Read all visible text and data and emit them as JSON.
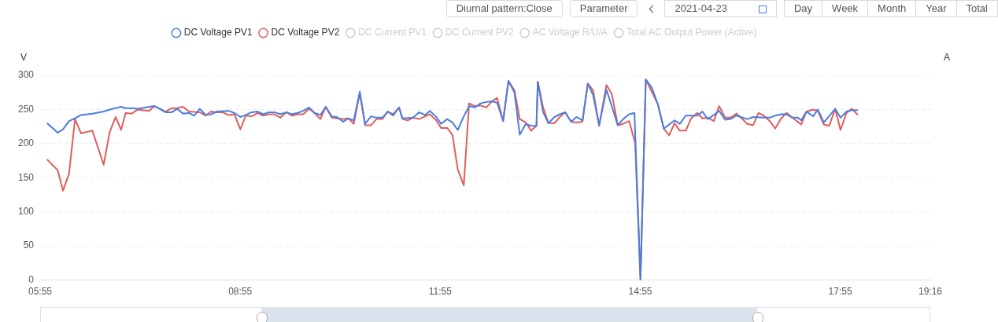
{
  "chart_data": {
    "type": "line",
    "annotations": [
      "Diurnal pattern:Close",
      "Parameter",
      "2021-04-23",
      "Day",
      "Week",
      "Month",
      "Year",
      "Total"
    ],
    "ylabel": "V",
    "y2label": "A",
    "xlim": [
      5.9167,
      19.2667
    ],
    "xticks": [
      {
        "value": 5.9167,
        "label": "05:55"
      },
      {
        "value": 8.9167,
        "label": "08:55"
      },
      {
        "value": 11.9167,
        "label": "11:55"
      },
      {
        "value": 14.9167,
        "label": "14:55"
      },
      {
        "value": 17.9167,
        "label": "17:55"
      },
      {
        "value": 19.2667,
        "label": "19:16"
      }
    ],
    "ylim": [
      0,
      300
    ],
    "yticks": [
      0,
      50,
      100,
      150,
      200,
      250,
      300
    ],
    "grid": "y",
    "legend": "top",
    "marker": "none",
    "line_style": "solid",
    "series": [
      {
        "name": "DC Voltage PV1",
        "color": "#4a7de0",
        "x": [
          6.02,
          6.18,
          6.26,
          6.35,
          6.44,
          6.53,
          6.7,
          6.87,
          6.96,
          7.13,
          7.2,
          7.29,
          7.38,
          7.63,
          7.8,
          7.89,
          7.97,
          8.06,
          8.15,
          8.23,
          8.31,
          8.4,
          8.48,
          8.57,
          8.74,
          8.83,
          8.92,
          9.0,
          9.09,
          9.18,
          9.26,
          9.35,
          9.43,
          9.52,
          9.61,
          9.69,
          9.78,
          9.86,
          9.95,
          10.03,
          10.12,
          10.2,
          10.29,
          10.37,
          10.46,
          10.54,
          10.62,
          10.71,
          10.79,
          10.88,
          10.96,
          11.05,
          11.13,
          11.21,
          11.3,
          11.35,
          11.51,
          11.6,
          11.69,
          11.76,
          11.85,
          11.93,
          12.02,
          12.1,
          12.18,
          12.27,
          12.35,
          12.44,
          12.52,
          12.61,
          12.69,
          12.77,
          12.86,
          12.94,
          13.03,
          13.11,
          13.2,
          13.28,
          13.36,
          13.38,
          13.46,
          13.54,
          13.63,
          13.71,
          13.79,
          13.88,
          13.96,
          14.05,
          14.13,
          14.21,
          14.3,
          14.41,
          14.58,
          14.66,
          14.75,
          14.83,
          14.92,
          15.0,
          15.09,
          15.18,
          15.27,
          15.43,
          15.51,
          15.6,
          15.77,
          15.85,
          15.93,
          16.02,
          16.1,
          16.19,
          16.27,
          16.36,
          16.52,
          16.61,
          16.77,
          16.86,
          16.94,
          17.03,
          17.11,
          17.2,
          17.28,
          17.33,
          17.41,
          17.51,
          17.58,
          17.67,
          17.84,
          17.92,
          18.01,
          18.09,
          18.18
        ],
        "values": [
          230,
          216,
          221,
          233,
          237,
          242,
          244,
          247,
          250,
          254,
          252,
          252,
          251,
          255,
          246,
          246,
          251,
          244,
          245,
          241,
          251,
          242,
          243,
          247,
          248,
          245,
          239,
          242,
          246,
          247,
          243,
          246,
          246,
          243,
          246,
          243,
          245,
          248,
          253,
          245,
          242,
          254,
          240,
          239,
          232,
          237,
          234,
          276,
          229,
          240,
          238,
          238,
          247,
          241,
          253,
          237,
          238,
          246,
          242,
          248,
          240,
          229,
          236,
          231,
          220,
          240,
          255,
          253,
          259,
          261,
          262,
          260,
          233,
          292,
          275,
          213,
          229,
          226,
          226,
          290,
          246,
          230,
          239,
          243,
          246,
          232,
          239,
          234,
          288,
          271,
          227,
          279,
          227,
          236,
          243,
          245,
          0,
          294,
          282,
          258,
          222,
          234,
          229,
          241,
          241,
          247,
          236,
          242,
          248,
          235,
          236,
          241,
          236,
          239,
          238,
          238,
          241,
          243,
          243,
          238,
          238,
          234,
          247,
          240,
          250,
          231,
          251,
          238,
          247,
          249,
          249
        ]
      },
      {
        "name": "DC Voltage PV2",
        "color": "#e05d5d",
        "x": [
          6.02,
          6.18,
          6.26,
          6.35,
          6.44,
          6.53,
          6.7,
          6.87,
          6.96,
          7.05,
          7.13,
          7.2,
          7.29,
          7.38,
          7.55,
          7.63,
          7.8,
          7.89,
          7.97,
          8.06,
          8.15,
          8.31,
          8.4,
          8.48,
          8.57,
          8.65,
          8.74,
          8.83,
          8.92,
          9.0,
          9.09,
          9.18,
          9.26,
          9.35,
          9.43,
          9.52,
          9.61,
          9.69,
          9.78,
          9.86,
          9.95,
          10.03,
          10.12,
          10.2,
          10.29,
          10.37,
          10.46,
          10.54,
          10.62,
          10.71,
          10.79,
          10.88,
          10.96,
          11.05,
          11.13,
          11.21,
          11.3,
          11.35,
          11.43,
          11.51,
          11.6,
          11.69,
          11.76,
          11.85,
          11.93,
          12.02,
          12.1,
          12.18,
          12.27,
          12.35,
          12.44,
          12.52,
          12.61,
          12.69,
          12.77,
          12.86,
          12.94,
          13.03,
          13.11,
          13.2,
          13.28,
          13.36,
          13.38,
          13.46,
          13.54,
          13.63,
          13.71,
          13.79,
          13.88,
          13.96,
          14.05,
          14.13,
          14.21,
          14.3,
          14.41,
          14.49,
          14.58,
          14.66,
          14.75,
          14.84,
          14.92,
          15.0,
          15.09,
          15.18,
          15.27,
          15.35,
          15.43,
          15.51,
          15.6,
          15.68,
          15.77,
          15.85,
          15.93,
          16.02,
          16.1,
          16.19,
          16.27,
          16.36,
          16.44,
          16.52,
          16.61,
          16.69,
          16.77,
          16.86,
          16.94,
          17.03,
          17.11,
          17.2,
          17.33,
          17.41,
          17.51,
          17.58,
          17.67,
          17.75,
          17.84,
          17.92,
          18.01,
          18.09,
          18.18
        ],
        "values": [
          177,
          161,
          131,
          156,
          236,
          215,
          219,
          169,
          217,
          239,
          220,
          245,
          244,
          250,
          248,
          255,
          247,
          252,
          252,
          254,
          247,
          246,
          241,
          247,
          246,
          246,
          242,
          243,
          221,
          241,
          240,
          245,
          241,
          243,
          243,
          238,
          246,
          241,
          243,
          243,
          251,
          245,
          236,
          254,
          238,
          237,
          236,
          237,
          229,
          274,
          227,
          227,
          236,
          236,
          247,
          243,
          253,
          236,
          234,
          238,
          236,
          240,
          243,
          235,
          223,
          223,
          213,
          162,
          139,
          259,
          255,
          256,
          253,
          262,
          267,
          233,
          292,
          278,
          236,
          231,
          219,
          226,
          291,
          253,
          230,
          230,
          239,
          246,
          232,
          231,
          232,
          288,
          278,
          226,
          286,
          273,
          227,
          229,
          233,
          201,
          0,
          294,
          276,
          258,
          222,
          212,
          230,
          219,
          219,
          237,
          245,
          237,
          238,
          233,
          255,
          238,
          238,
          244,
          237,
          229,
          227,
          245,
          241,
          233,
          222,
          237,
          245,
          238,
          228,
          247,
          250,
          248,
          228,
          226,
          251,
          220,
          245,
          251,
          242
        ]
      },
      {
        "name": "DC Current PV1",
        "color": "#cccccc"
      },
      {
        "name": "DC Current PV2",
        "color": "#cccccc"
      },
      {
        "name": "AC Voltage R/U/A",
        "color": "#cccccc"
      },
      {
        "name": "Total AC Output Power (Active)",
        "color": "#cccccc"
      }
    ]
  }
}
